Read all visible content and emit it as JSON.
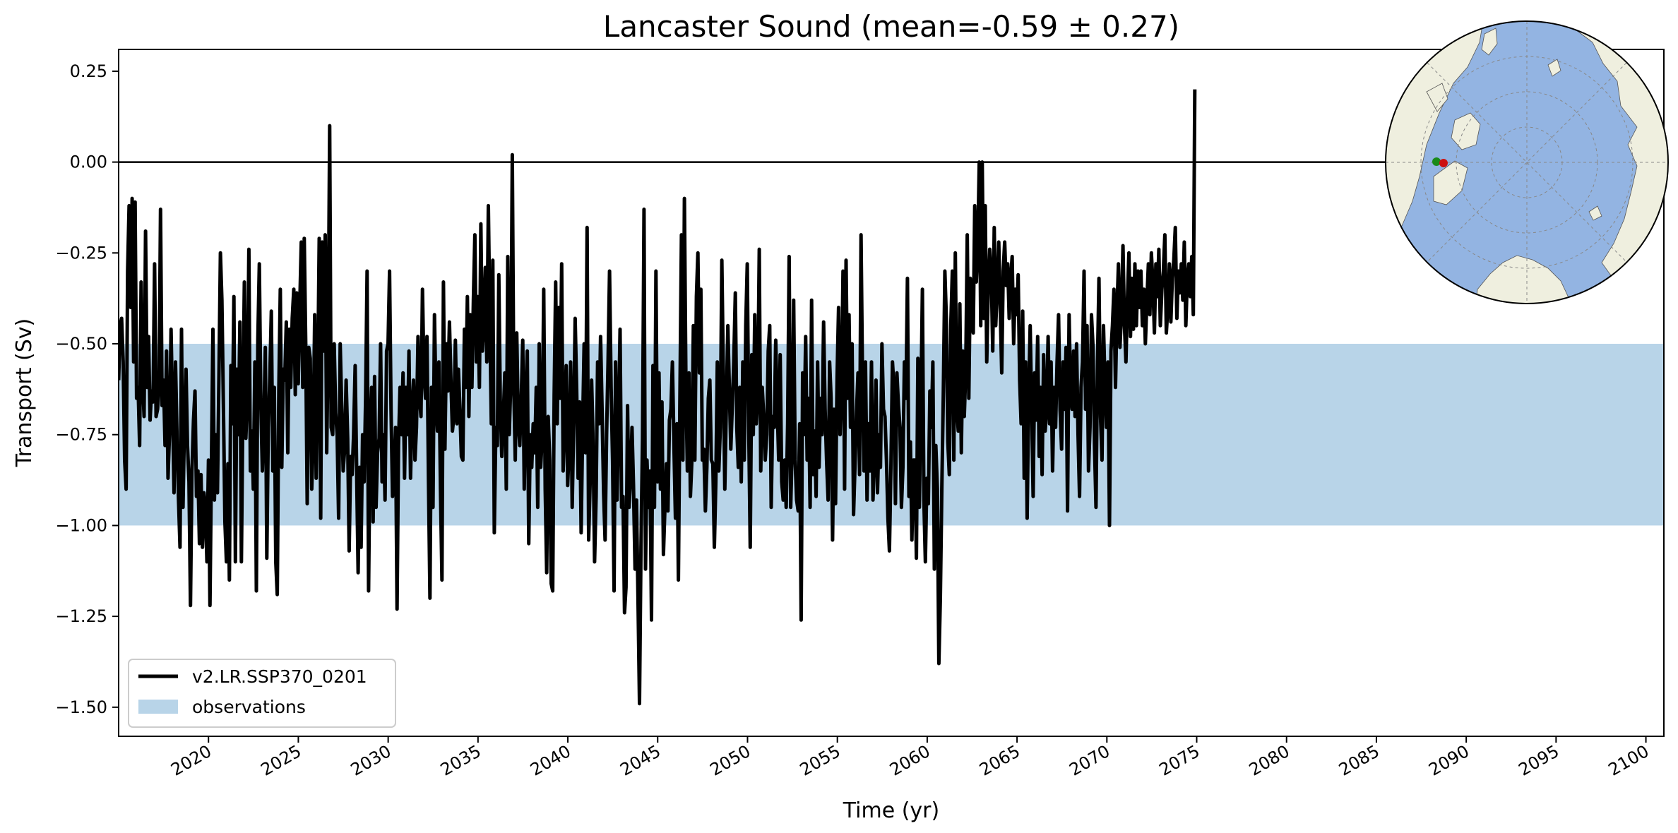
{
  "chart_data": {
    "type": "line",
    "title": "Lancaster Sound (mean=-0.59 ± 0.27)",
    "xlabel": "Time (yr)",
    "ylabel": "Transport (Sv)",
    "xlim": [
      2015.0,
      2101.0
    ],
    "ylim": [
      -1.58,
      0.31
    ],
    "x_ticks": [
      2020,
      2025,
      2030,
      2035,
      2040,
      2045,
      2050,
      2055,
      2060,
      2065,
      2070,
      2075,
      2080,
      2085,
      2090,
      2095,
      2100
    ],
    "x_tick_labels": [
      "2020",
      "2025",
      "2030",
      "2035",
      "2040",
      "2045",
      "2050",
      "2055",
      "2060",
      "2065",
      "2070",
      "2075",
      "2080",
      "2085",
      "2090",
      "2095",
      "2100"
    ],
    "y_ticks": [
      0.25,
      0.0,
      -0.25,
      -0.5,
      -0.75,
      -1.0,
      -1.25,
      -1.5
    ],
    "y_tick_labels": [
      "0.25",
      "0.00",
      "−0.25",
      "−0.50",
      "−0.75",
      "−1.00",
      "−1.25",
      "−1.50"
    ],
    "zero_line": 0.0,
    "observations_band": [
      -1.0,
      -0.5
    ],
    "series": [
      {
        "name": "v2.LR.SSP370_0201",
        "color": "#000000",
        "x_start": 2015.0,
        "x_step": 0.0833,
        "values": [
          -0.6,
          -0.45,
          -0.43,
          -0.55,
          -0.82,
          -0.9,
          -0.3,
          -0.12,
          -0.4,
          -0.1,
          -0.55,
          -0.11,
          -0.65,
          -0.62,
          -0.78,
          -0.33,
          -0.6,
          -0.7,
          -0.19,
          -0.62,
          -0.48,
          -0.71,
          -0.63,
          -0.66,
          -0.28,
          -0.7,
          -0.68,
          -0.62,
          -0.13,
          -0.67,
          -0.6,
          -0.78,
          -0.52,
          -0.87,
          -0.74,
          -0.46,
          -0.68,
          -0.91,
          -0.55,
          -0.76,
          -0.93,
          -1.06,
          -0.46,
          -0.95,
          -0.72,
          -0.57,
          -0.78,
          -0.88,
          -1.22,
          -0.85,
          -0.71,
          -0.63,
          -0.92,
          -0.85,
          -1.05,
          -0.86,
          -1.06,
          -0.91,
          -0.95,
          -1.1,
          -0.82,
          -1.22,
          -0.83,
          -0.46,
          -0.93,
          -0.75,
          -0.91,
          -0.59,
          -0.25,
          -0.38,
          -0.68,
          -0.99,
          -1.1,
          -0.83,
          -1.15,
          -0.56,
          -0.72,
          -0.37,
          -1.1,
          -0.57,
          -0.75,
          -0.44,
          -1.1,
          -0.68,
          -0.33,
          -0.76,
          -0.64,
          -0.24,
          -0.85,
          -0.74,
          -0.9,
          -0.55,
          -1.18,
          -0.49,
          -0.28,
          -0.66,
          -0.85,
          -0.71,
          -0.51,
          -1.09,
          -0.73,
          -0.59,
          -0.41,
          -0.85,
          -0.62,
          -1.1,
          -1.19,
          -0.63,
          -0.35,
          -0.84,
          -0.57,
          -0.6,
          -0.44,
          -0.8,
          -0.46,
          -0.62,
          -0.43,
          -0.35,
          -0.64,
          -0.36,
          -0.61,
          -0.4,
          -0.22,
          -0.62,
          -0.21,
          -0.5,
          -0.94,
          -0.51,
          -0.54,
          -0.9,
          -0.76,
          -0.42,
          -0.87,
          -0.6,
          -0.21,
          -0.98,
          -0.22,
          -0.52,
          -0.2,
          -0.8,
          -0.5,
          0.1,
          -0.73,
          -0.75,
          -0.5,
          -0.69,
          -0.75,
          -0.98,
          -0.5,
          -0.67,
          -0.85,
          -0.79,
          -0.6,
          -0.76,
          -1.07,
          -0.81,
          -0.86,
          -0.75,
          -0.56,
          -0.85,
          -1.13,
          -0.84,
          -1.06,
          -0.75,
          -0.88,
          -0.65,
          -0.3,
          -1.18,
          -0.75,
          -0.62,
          -0.99,
          -0.59,
          -0.95,
          -0.8,
          -0.76,
          -0.5,
          -0.88,
          -0.75,
          -0.93,
          -0.52,
          -0.5,
          -0.3,
          -0.68,
          -0.92,
          -0.85,
          -0.73,
          -1.23,
          -0.78,
          -0.62,
          -0.75,
          -0.58,
          -0.87,
          -0.62,
          -0.75,
          -0.52,
          -0.87,
          -0.69,
          -0.6,
          -0.82,
          -0.73,
          -0.48,
          -0.65,
          -0.7,
          -0.35,
          -0.58,
          -0.65,
          -0.48,
          -0.87,
          -1.2,
          -0.62,
          -0.95,
          -0.42,
          -0.65,
          -0.74,
          -0.55,
          -0.9,
          -1.15,
          -0.33,
          -0.79,
          -0.5,
          -0.63,
          -0.44,
          -0.6,
          -0.74,
          -0.7,
          -0.49,
          -0.72,
          -0.57,
          -0.68,
          -0.81,
          -0.82,
          -0.46,
          -0.62,
          -0.37,
          -0.7,
          -0.42,
          -0.62,
          -0.38,
          -0.2,
          -0.55,
          -0.37,
          -0.62,
          -0.17,
          -0.52,
          -0.45,
          -0.29,
          -0.55,
          -0.12,
          -0.44,
          -0.72,
          -0.27,
          -1.02,
          -0.73,
          -0.78,
          -0.31,
          -0.66,
          -0.81,
          -0.7,
          -0.58,
          -0.9,
          -0.26,
          -0.75,
          -0.6,
          0.02,
          -0.62,
          -0.82,
          -0.47,
          -0.72,
          -0.78,
          -0.65,
          -0.49,
          -0.9,
          -0.65,
          -0.52,
          -1.05,
          -0.75,
          -0.84,
          -0.72,
          -0.8,
          -0.62,
          -0.95,
          -0.5,
          -0.84,
          -0.75,
          -0.35,
          -0.9,
          -1.13,
          -0.7,
          -0.82,
          -1.16,
          -1.18,
          -0.64,
          -0.33,
          -0.72,
          -0.4,
          -0.65,
          -0.28,
          -0.85,
          -0.7,
          -0.56,
          -0.89,
          -0.78,
          -0.55,
          -0.95,
          -0.72,
          -0.43,
          -0.62,
          -0.87,
          -0.66,
          -1.02,
          -0.73,
          -0.5,
          -0.8,
          -0.18,
          -1.04,
          -0.88,
          -0.6,
          -0.77,
          -1.1,
          -0.92,
          -0.55,
          -0.72,
          -0.48,
          -0.68,
          -0.91,
          -1.04,
          -0.75,
          -0.55,
          -0.3,
          -0.62,
          -0.82,
          -1.18,
          -0.55,
          -0.93,
          -0.71,
          -0.46,
          -0.95,
          -0.92,
          -1.24,
          -1.17,
          -0.67,
          -0.95,
          -0.87,
          -0.73,
          -0.89,
          -1.12,
          -0.93,
          -1.2,
          -1.49,
          -1.06,
          -0.76,
          -0.13,
          -1.12,
          -0.82,
          -0.95,
          -0.85,
          -1.26,
          -0.56,
          -0.95,
          -0.3,
          -0.88,
          -0.58,
          -0.9,
          -0.66,
          -1.08,
          -0.95,
          -0.83,
          -0.96,
          -0.71,
          -0.68,
          -0.55,
          -0.78,
          -0.98,
          -0.72,
          -1.15,
          -0.66,
          -0.2,
          -0.82,
          -0.1,
          -0.6,
          -0.85,
          -0.58,
          -0.92,
          -0.82,
          -0.45,
          -0.82,
          -0.37,
          -0.25,
          -0.58,
          -0.35,
          -0.82,
          -0.79,
          -0.96,
          -0.84,
          -0.65,
          -0.6,
          -0.82,
          -0.83,
          -1.06,
          -0.88,
          -0.55,
          -0.85,
          -0.73,
          -0.27,
          -0.58,
          -0.9,
          -0.68,
          -0.45,
          -0.62,
          -0.79,
          -0.67,
          -0.55,
          -0.36,
          -0.73,
          -0.84,
          -0.62,
          -0.88,
          -0.55,
          -0.82,
          -0.45,
          -0.28,
          -0.73,
          -1.06,
          -0.53,
          -0.75,
          -0.42,
          -0.72,
          -0.65,
          -0.24,
          -0.85,
          -0.62,
          -0.7,
          -0.82,
          -0.75,
          -0.52,
          -0.45,
          -0.95,
          -0.7,
          -0.73,
          -0.49,
          -0.67,
          -0.82,
          -0.53,
          -0.88,
          -0.93,
          -0.82,
          -0.95,
          -0.72,
          -0.26,
          -0.95,
          -0.78,
          -0.38,
          -0.82,
          -0.93,
          -0.96,
          -0.72,
          -1.26,
          -0.58,
          -0.75,
          -0.48,
          -0.82,
          -0.65,
          -0.95,
          -0.38,
          -0.86,
          -0.74,
          -0.92,
          -0.55,
          -0.84,
          -0.65,
          -0.75,
          -0.44,
          -0.68,
          -0.82,
          -0.93,
          -0.55,
          -0.65,
          -1.04,
          -0.68,
          -0.94,
          -0.59,
          -0.4,
          -0.75,
          -0.62,
          -0.3,
          -0.9,
          -0.27,
          -0.65,
          -0.42,
          -0.73,
          -0.5,
          -0.97,
          -0.83,
          -0.69,
          -0.58,
          -0.86,
          -0.2,
          -0.6,
          -0.85,
          -0.55,
          -0.93,
          -0.72,
          -0.85,
          -0.55,
          -0.93,
          -0.8,
          -0.6,
          -0.91,
          -0.75,
          -0.84,
          -0.5,
          -0.68,
          -0.7,
          -0.82,
          -0.98,
          -1.07,
          -0.83,
          -0.55,
          -0.62,
          -0.94,
          -0.58,
          -0.67,
          -0.73,
          -0.95,
          -0.84,
          -0.55,
          -0.65,
          -0.32,
          -0.92,
          -0.77,
          -1.04,
          -0.82,
          -0.82,
          -1.09,
          -0.54,
          -0.95,
          -0.67,
          -0.35,
          -0.93,
          -1.1,
          -0.87,
          -0.94,
          -0.63,
          -0.73,
          -0.55,
          -1.12,
          -0.78,
          -0.9,
          -1.38,
          -1.2,
          -0.9,
          -0.64,
          -0.3,
          -0.43,
          -0.77,
          -0.86,
          -0.45,
          -0.3,
          -0.82,
          -0.25,
          -0.68,
          -0.74,
          -0.39,
          -0.8,
          -0.52,
          -0.7,
          -0.57,
          -0.2,
          -0.65,
          -0.32,
          -0.42,
          -0.47,
          -0.12,
          -0.33,
          -0.23,
          0.0,
          -0.45,
          0.0,
          -0.43,
          -0.12,
          -0.55,
          -0.35,
          -0.24,
          -0.3,
          -0.52,
          -0.18,
          -0.45,
          -0.35,
          -0.22,
          -0.4,
          -0.58,
          -0.3,
          -0.22,
          -0.34,
          -0.28,
          -0.43,
          -0.32,
          -0.26,
          -0.5,
          -0.35,
          -0.42,
          -0.31,
          -0.6,
          -0.72,
          -0.41,
          -0.87,
          -0.55,
          -0.98,
          -0.65,
          -0.45,
          -0.68,
          -0.92,
          -0.58,
          -0.71,
          -0.48,
          -0.81,
          -0.62,
          -0.86,
          -0.53,
          -0.74,
          -0.68,
          -0.48,
          -0.72,
          -0.55,
          -0.85,
          -0.62,
          -0.73,
          -0.55,
          -0.42,
          -0.68,
          -0.79,
          -0.55,
          -0.68,
          -0.51,
          -0.96,
          -0.42,
          -0.63,
          -0.68,
          -0.52,
          -0.7,
          -0.5,
          -0.75,
          -0.92,
          -0.62,
          -0.55,
          -0.3,
          -0.68,
          -0.45,
          -0.85,
          -0.73,
          -0.42,
          -0.51,
          -0.78,
          -0.95,
          -0.55,
          -0.32,
          -0.7,
          -0.82,
          -0.45,
          -0.61,
          -0.73,
          -0.55,
          -1.0,
          -0.52,
          -0.45,
          -0.35,
          -0.62,
          -0.41,
          -0.28,
          -0.51,
          -0.42,
          -0.23,
          -0.45,
          -0.55,
          -0.38,
          -0.25,
          -0.48,
          -0.32,
          -0.46,
          -0.28,
          -0.45,
          -0.3,
          -0.4,
          -0.3,
          -0.45,
          -0.35,
          -0.5,
          -0.38,
          -0.28,
          -0.42,
          -0.25,
          -0.33,
          -0.47,
          -0.28,
          -0.37,
          -0.24,
          -0.45,
          -0.35,
          -0.3,
          -0.2,
          -0.47,
          -0.4,
          -0.28,
          -0.44,
          -0.32,
          -0.27,
          -0.18,
          -0.43,
          -0.3,
          -0.36,
          -0.28,
          -0.38,
          -0.22,
          -0.45,
          -0.32,
          -0.28,
          -0.37,
          -0.26,
          -0.42,
          0.2
        ]
      }
    ],
    "legend": {
      "position": "lower-left",
      "entries": [
        {
          "label": "v2.LR.SSP370_0201",
          "kind": "line",
          "color": "#000000"
        },
        {
          "label": "observations",
          "kind": "patch",
          "color": "#b8d4e8"
        }
      ]
    },
    "inset_map": {
      "type": "north-polar-map",
      "position": "top-right",
      "ocean_color": "#93b4e2",
      "land_color": "#efefdf",
      "markers": [
        {
          "name": "section-start",
          "color": "#1a8a1a"
        },
        {
          "name": "section-end",
          "color": "#cc1111"
        }
      ]
    },
    "colors": {
      "line": "#000000",
      "band": "#b8d4e8",
      "zero_line": "#000000"
    }
  }
}
